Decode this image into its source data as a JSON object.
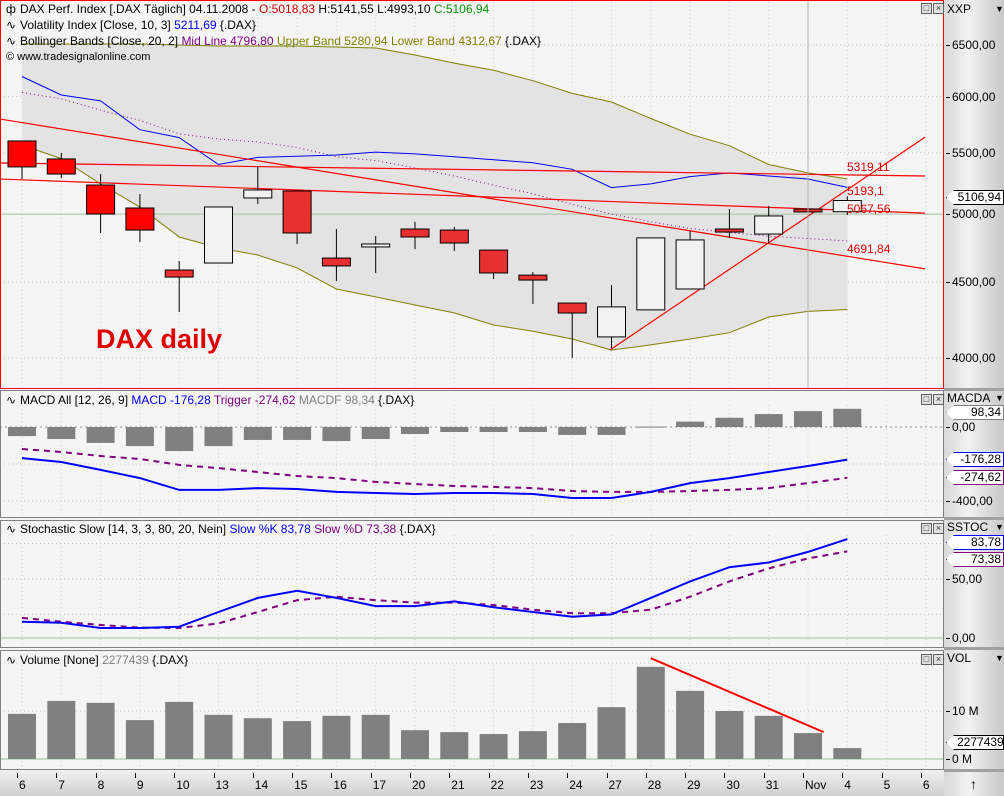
{
  "price_panel": {
    "header": {
      "title": "DAX Perf. Index [.DAX  Täglich] 04.11.2008 - ",
      "open": "O:5018,83",
      "high_low": " H:5141,55 L:4993,10 ",
      "close": "C:5106,94"
    },
    "volatility_header": {
      "label": "Volatility Index [Close, 10, 3] ",
      "value": "5211,69",
      "suffix": " {.DAX}"
    },
    "bollinger_header": {
      "label": "Bollinger Bands [Close, 20, 2] ",
      "mid": "Mid Line 4796,80",
      "bands": " Upper Band 5280,94 Lower Band 4312,67",
      "suffix": " {.DAX}"
    },
    "copyright": "© www.tradesignalonline.com",
    "annotation": "DAX daily",
    "scale_title": "XXP",
    "current_tag": "5106,94",
    "trendline_labels": [
      "5319,11",
      "5193,1",
      "5067,56",
      "4691,84"
    ]
  },
  "macd_panel": {
    "header": {
      "label": "MACD All [12, 26, 9] ",
      "macd": "MACD -176,28",
      "trigger": " Trigger -274,62",
      "macdf": " MACDF 98,34",
      "suffix": " {.DAX}"
    },
    "scale_title": "MACDA",
    "tags": {
      "macdf": "98,34",
      "macd": "-176,28",
      "trigger": "-274,62"
    }
  },
  "stoch_panel": {
    "header": {
      "label": "Stochastic Slow [14, 3, 3, 80, 20, Nein] ",
      "k": "Slow %K 83,78",
      "d": " Slow %D 73,38",
      "suffix": " {.DAX}"
    },
    "scale_title": "SSTOC",
    "tags": {
      "k": "83,78",
      "d": "73,38"
    }
  },
  "volume_panel": {
    "header": {
      "label": "Volume [None] ",
      "value": "2277439",
      "suffix": " {.DAX}"
    },
    "scale_title": "VOL",
    "tag": "2277439"
  },
  "bottom_right_icon": "↑",
  "colors": {
    "bear": "#e83030",
    "bull": "#f2f2f2",
    "volatility": "#0000ff",
    "mid": "#800080",
    "band": "#808000",
    "band_fill": "#e3e3e3",
    "trend": "#ff0000",
    "macd": "#0000ff",
    "trigger": "#800080",
    "hist": "#808080"
  },
  "chart_data": {
    "type": "candlestick",
    "categories": [
      "6",
      "7",
      "8",
      "9",
      "10",
      "13",
      "14",
      "15",
      "16",
      "17",
      "20",
      "21",
      "22",
      "23",
      "24",
      "27",
      "28",
      "29",
      "30",
      "31",
      "Nov",
      "4",
      "5",
      "6"
    ],
    "price": {
      "scale": "log",
      "ticks": [
        {
          "value": 6500,
          "label": "6500,00"
        },
        {
          "value": 6000,
          "label": "6000,00"
        },
        {
          "value": 5500,
          "label": "5500,00"
        },
        {
          "value": 5000,
          "label": "5000,00"
        },
        {
          "value": 4500,
          "label": "4500,00"
        },
        {
          "value": 4000,
          "label": "4000,00"
        }
      ],
      "ohlc": [
        [
          5601,
          5601,
          5280,
          5380
        ],
        [
          5447,
          5498,
          5288,
          5321
        ],
        [
          5231,
          5321,
          4856,
          5001
        ],
        [
          5048,
          5159,
          4789,
          4878
        ],
        [
          4585,
          4649,
          4296,
          4535
        ],
        [
          4635,
          5056,
          4635,
          5056
        ],
        [
          5127,
          5388,
          5080,
          5191
        ],
        [
          5183,
          5183,
          4774,
          4856
        ],
        [
          4671,
          4886,
          4507,
          4614
        ],
        [
          4752,
          4833,
          4564,
          4774
        ],
        [
          4886,
          4940,
          4737,
          4826
        ],
        [
          4878,
          4902,
          4722,
          4781
        ],
        [
          4729,
          4729,
          4521,
          4564
        ],
        [
          4549,
          4571,
          4350,
          4514
        ],
        [
          4356,
          4356,
          4000,
          4289
        ],
        [
          4133,
          4480,
          4063,
          4330
        ],
        [
          4310,
          4819,
          4310,
          4819
        ],
        [
          4452,
          4871,
          4452,
          4804
        ],
        [
          4886,
          5040,
          4819,
          4863
        ],
        [
          4848,
          5064,
          4781,
          4986
        ],
        [
          5040,
          5087,
          4962,
          5017
        ],
        [
          5018.83,
          5141.55,
          4993.1,
          5106.94
        ]
      ],
      "volatility_index": [
        6190,
        6015,
        5960,
        5700,
        5630,
        5400,
        5460,
        5470,
        5480,
        5505,
        5490,
        5465,
        5440,
        5415,
        5360,
        5210,
        5240,
        5300,
        5330,
        5305,
        5280,
        5211.69
      ],
      "bollinger_upper": [
        6510,
        6510,
        6510,
        6510,
        6500,
        6490,
        6490,
        6490,
        6480,
        6470,
        6400,
        6320,
        6250,
        6150,
        6030,
        5950,
        5800,
        5660,
        5560,
        5400,
        5330,
        5280.94
      ],
      "bollinger_mid": [
        6038,
        5980,
        5875,
        5783,
        5663,
        5618,
        5592,
        5545,
        5466,
        5434,
        5372,
        5305,
        5230,
        5160,
        5075,
        5000,
        4941,
        4890,
        4860,
        4832,
        4815,
        4796.8
      ],
      "bollinger_lower": [
        5566,
        5450,
        5240,
        5055,
        4826,
        4745,
        4693,
        4600,
        4452,
        4398,
        4343,
        4290,
        4210,
        4170,
        4120,
        4050,
        4082,
        4120,
        4160,
        4263,
        4300,
        4312.67
      ],
      "trendlines": [
        {
          "from": [
            -0.56,
            5795
          ],
          "to": [
            22.98,
            4593
          ]
        },
        {
          "from": [
            -0.56,
            5280
          ],
          "to": [
            22.98,
            5008
          ]
        },
        {
          "from": [
            -0.56,
            5413
          ],
          "to": [
            22.98,
            5305
          ]
        },
        {
          "from": [
            14.96,
            4050
          ],
          "to": [
            22.98,
            5635
          ]
        }
      ]
    },
    "macd": {
      "ticks": [
        {
          "value": 0,
          "label": "0,00"
        },
        {
          "value": -400,
          "label": "-400,00"
        }
      ],
      "macd": [
        -168,
        -189,
        -232,
        -276,
        -340,
        -340,
        -330,
        -335,
        -351,
        -357,
        -362,
        -357,
        -357,
        -362,
        -384,
        -384,
        -351,
        -303,
        -276,
        -243,
        -211,
        -176.28
      ],
      "trigger": [
        -119,
        -135,
        -157,
        -173,
        -205,
        -222,
        -243,
        -265,
        -276,
        -297,
        -308,
        -319,
        -324,
        -330,
        -346,
        -351,
        -351,
        -346,
        -340,
        -330,
        -303,
        -274.62
      ],
      "histogram": [
        -49,
        -65,
        -86,
        -103,
        -130,
        -103,
        -70,
        -70,
        -76,
        -65,
        -38,
        -27,
        -27,
        -27,
        -43,
        -43,
        2,
        29,
        50,
        70,
        86,
        98.34
      ]
    },
    "stochastic": {
      "ticks": [
        {
          "value": 50,
          "label": "50,00"
        },
        {
          "value": 0,
          "label": "0,00"
        }
      ],
      "k": [
        13.8,
        13,
        8.5,
        8.5,
        9.6,
        22,
        34,
        40,
        34,
        27,
        27,
        31,
        26,
        22,
        18,
        20,
        34,
        48,
        60,
        64,
        73,
        83.78
      ],
      "d": [
        17,
        13.8,
        11,
        8.7,
        8.5,
        12.4,
        22,
        32,
        35,
        32,
        30,
        30,
        28,
        24,
        21,
        21,
        24,
        35,
        48,
        59,
        67.5,
        73.38
      ]
    },
    "volume": {
      "unit": "M",
      "ticks": [
        {
          "value": 10,
          "label": "10 M"
        },
        {
          "value": 0,
          "label": "0 M"
        }
      ],
      "values_millions": [
        9.4,
        12.1,
        11.7,
        8.1,
        11.9,
        9.2,
        8.5,
        7.9,
        9.0,
        9.2,
        6.0,
        5.6,
        5.2,
        5.8,
        7.5,
        10.8,
        19.2,
        14.2,
        10.0,
        9.0,
        5.4,
        2.277439
      ],
      "trendline": {
        "from": [
          16.0,
          21.0
        ],
        "to": [
          20.4,
          5.6
        ]
      }
    }
  }
}
